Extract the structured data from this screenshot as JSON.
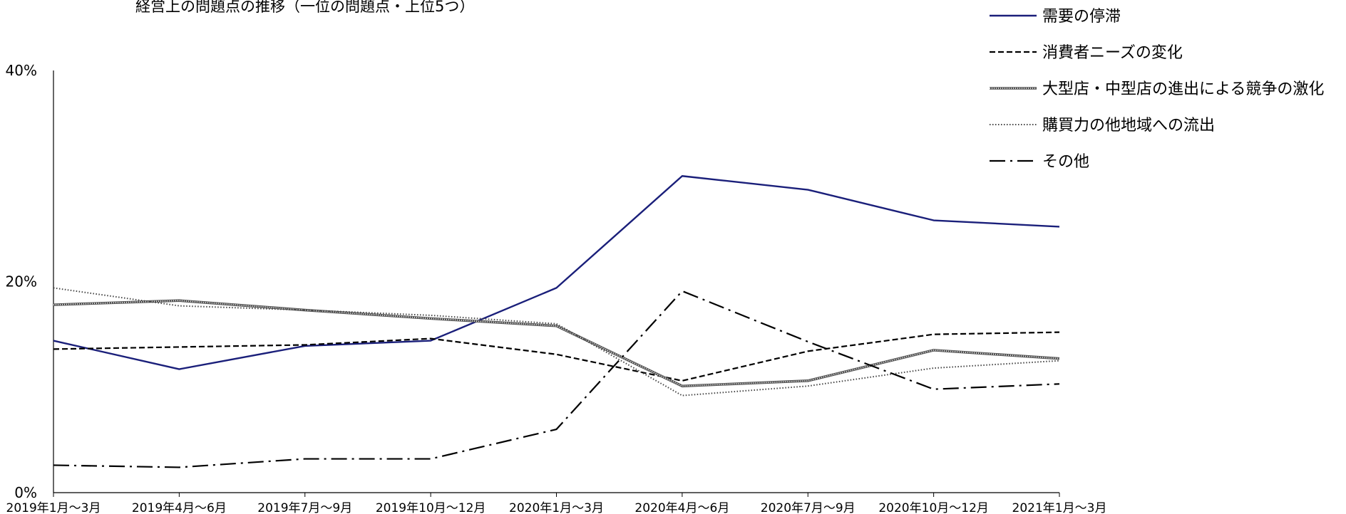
{
  "chart_data": {
    "type": "line",
    "title": "経営上の問題点の推移（一位の問題点・上位5つ）",
    "categories": [
      "2019年1月～3月",
      "2019年4月～6月",
      "2019年7月～9月",
      "2019年10月～12月",
      "2020年1月～3月",
      "2020年4月～6月",
      "2020年7月～9月",
      "2020年10月～12月",
      "2021年1月～3月"
    ],
    "yticks": [
      "0%",
      "20%",
      "40%"
    ],
    "ylim": [
      0,
      40
    ],
    "xlabel": "",
    "ylabel": "",
    "grid": false,
    "legend_position": "top-right",
    "series": [
      {
        "name": "需要の停滞",
        "values": [
          14.4,
          11.7,
          13.9,
          14.4,
          19.4,
          30.0,
          28.7,
          25.8,
          25.2
        ],
        "color": "#1a1f7a",
        "style": "solid"
      },
      {
        "name": "消費者ニーズの変化",
        "values": [
          13.6,
          13.8,
          14.0,
          14.6,
          13.1,
          10.6,
          13.4,
          15.0,
          15.2
        ],
        "color": "#000000",
        "style": "dashed"
      },
      {
        "name": "大型店・中型店の進出による競争の激化",
        "values": [
          17.8,
          18.2,
          17.3,
          16.5,
          15.8,
          10.1,
          10.6,
          13.5,
          12.7
        ],
        "color": "#555555",
        "style": "hatched"
      },
      {
        "name": "購買力の他地域への流出",
        "values": [
          19.4,
          17.7,
          17.3,
          16.8,
          16.0,
          9.2,
          10.1,
          11.8,
          12.5
        ],
        "color": "#444444",
        "style": "dotted"
      },
      {
        "name": "その他",
        "values": [
          2.6,
          2.4,
          3.2,
          3.2,
          6.0,
          19.1,
          14.3,
          9.8,
          10.3
        ],
        "color": "#000000",
        "style": "dashdot"
      }
    ]
  }
}
